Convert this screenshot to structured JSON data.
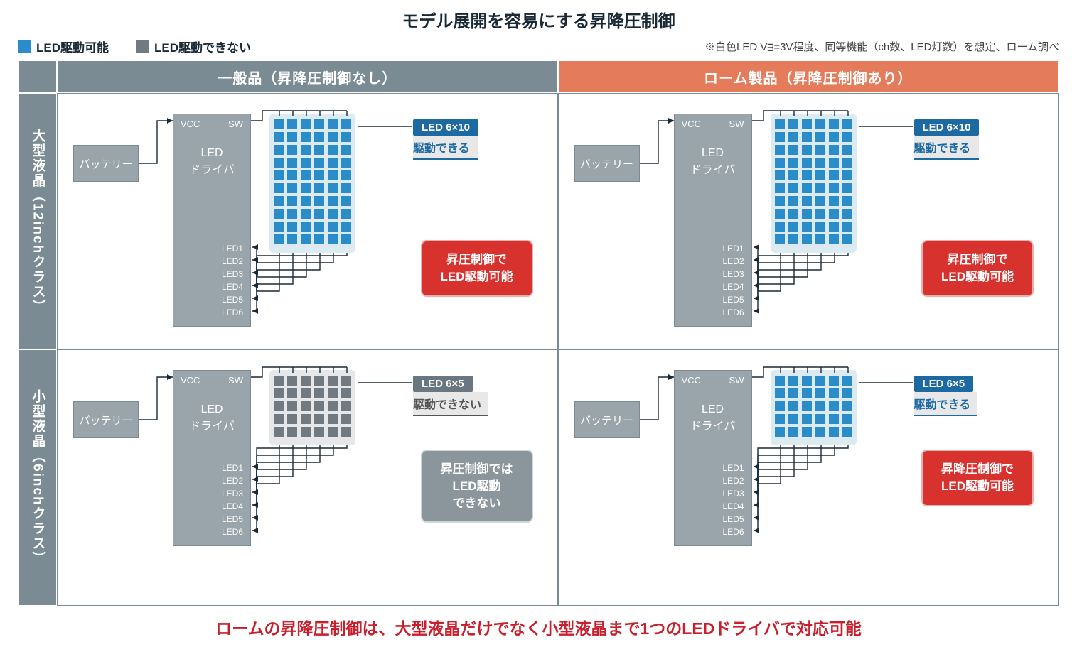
{
  "title": "モデル展開を容易にする昇降圧制御",
  "legend": {
    "can": "LED駆動可能",
    "cannot": "LED駆動できない"
  },
  "note": "※白色LED Vᴟ=3V程度、同等機能（ch数、LED灯数）を想定、ローム調べ",
  "footer": "ロームの昇降圧制御は、大型液晶だけでなく小型液晶まで1つのLEDドライバで対応可能",
  "colors": {
    "headerGray": "#7a8b94",
    "headerOrange": "#e47b5a",
    "blockGray": "#9aa5ab",
    "ledBlue": "#2a8cc9",
    "ledGray": "#707a80",
    "arrayBlueBg": "#dceaf2",
    "arrayGrayBg": "#e5e7e8",
    "calloutBlue": "#1d6aa3",
    "calloutGray": "#6b7780",
    "subBlue": "#1d6aa3",
    "subGray": "#555",
    "badgeRed": "#d7322e",
    "badgeGray": "#8b969c",
    "footerRed": "#c81f2d",
    "textDark": "#1a2936"
  },
  "cols": [
    {
      "label": "一般品（昇降圧制御なし）",
      "bg": "headerGray"
    },
    {
      "label": "ローム製品（昇降圧制御あり）",
      "bg": "headerOrange"
    }
  ],
  "rows": [
    {
      "label": "大型液晶（12inchクラス）"
    },
    {
      "label": "小型液晶（6inchクラス）"
    }
  ],
  "circuit": {
    "battery": "バッテリー",
    "driver": "LED\nドライバ",
    "vcc": "VCC",
    "sw": "SW",
    "leds": [
      "LED1",
      "LED2",
      "LED3",
      "LED4",
      "LED5",
      "LED6"
    ]
  },
  "cells": [
    {
      "arrayCols": 6,
      "arrayRows": 10,
      "ledColor": "ledBlue",
      "arrayBg": "arrayBlueBg",
      "callout": {
        "title": "LED 6×10",
        "sub": "駆動できる",
        "titleBg": "calloutBlue",
        "subColor": "subBlue"
      },
      "badge": {
        "l1": "昇圧制御で",
        "l2": "LED駆動可能",
        "bg": "badgeRed"
      },
      "badgeTop": 188,
      "calloutTop": 18,
      "drvH": 300,
      "drvTop": 10,
      "outsTop": 180
    },
    {
      "arrayCols": 6,
      "arrayRows": 10,
      "ledColor": "ledBlue",
      "arrayBg": "arrayBlueBg",
      "callout": {
        "title": "LED 6×10",
        "sub": "駆動できる",
        "titleBg": "calloutBlue",
        "subColor": "subBlue"
      },
      "badge": {
        "l1": "昇圧制御で",
        "l2": "LED駆動可能",
        "bg": "badgeRed"
      },
      "badgeTop": 188,
      "calloutTop": 18,
      "drvH": 300,
      "drvTop": 10,
      "outsTop": 180
    },
    {
      "arrayCols": 6,
      "arrayRows": 5,
      "ledColor": "ledGray",
      "arrayBg": "arrayGrayBg",
      "callout": {
        "title": "LED 6×5",
        "sub": "駆動できない",
        "titleBg": "calloutGray",
        "subColor": "subGray"
      },
      "badge": {
        "l1": "昇圧制御では",
        "l2": "LED駆動",
        "l3": "できない",
        "bg": "badgeGray"
      },
      "badgeTop": 122,
      "calloutTop": 18,
      "drvH": 248,
      "drvTop": 10,
      "outsTop": 128
    },
    {
      "arrayCols": 6,
      "arrayRows": 5,
      "ledColor": "ledBlue",
      "arrayBg": "arrayBlueBg",
      "callout": {
        "title": "LED 6×5",
        "sub": "駆動できる",
        "titleBg": "calloutBlue",
        "subColor": "subBlue"
      },
      "badge": {
        "l1": "昇降圧制御で",
        "l2": "LED駆動可能",
        "bg": "badgeRed"
      },
      "badgeTop": 122,
      "calloutTop": 18,
      "drvH": 248,
      "drvTop": 10,
      "outsTop": 128
    }
  ]
}
